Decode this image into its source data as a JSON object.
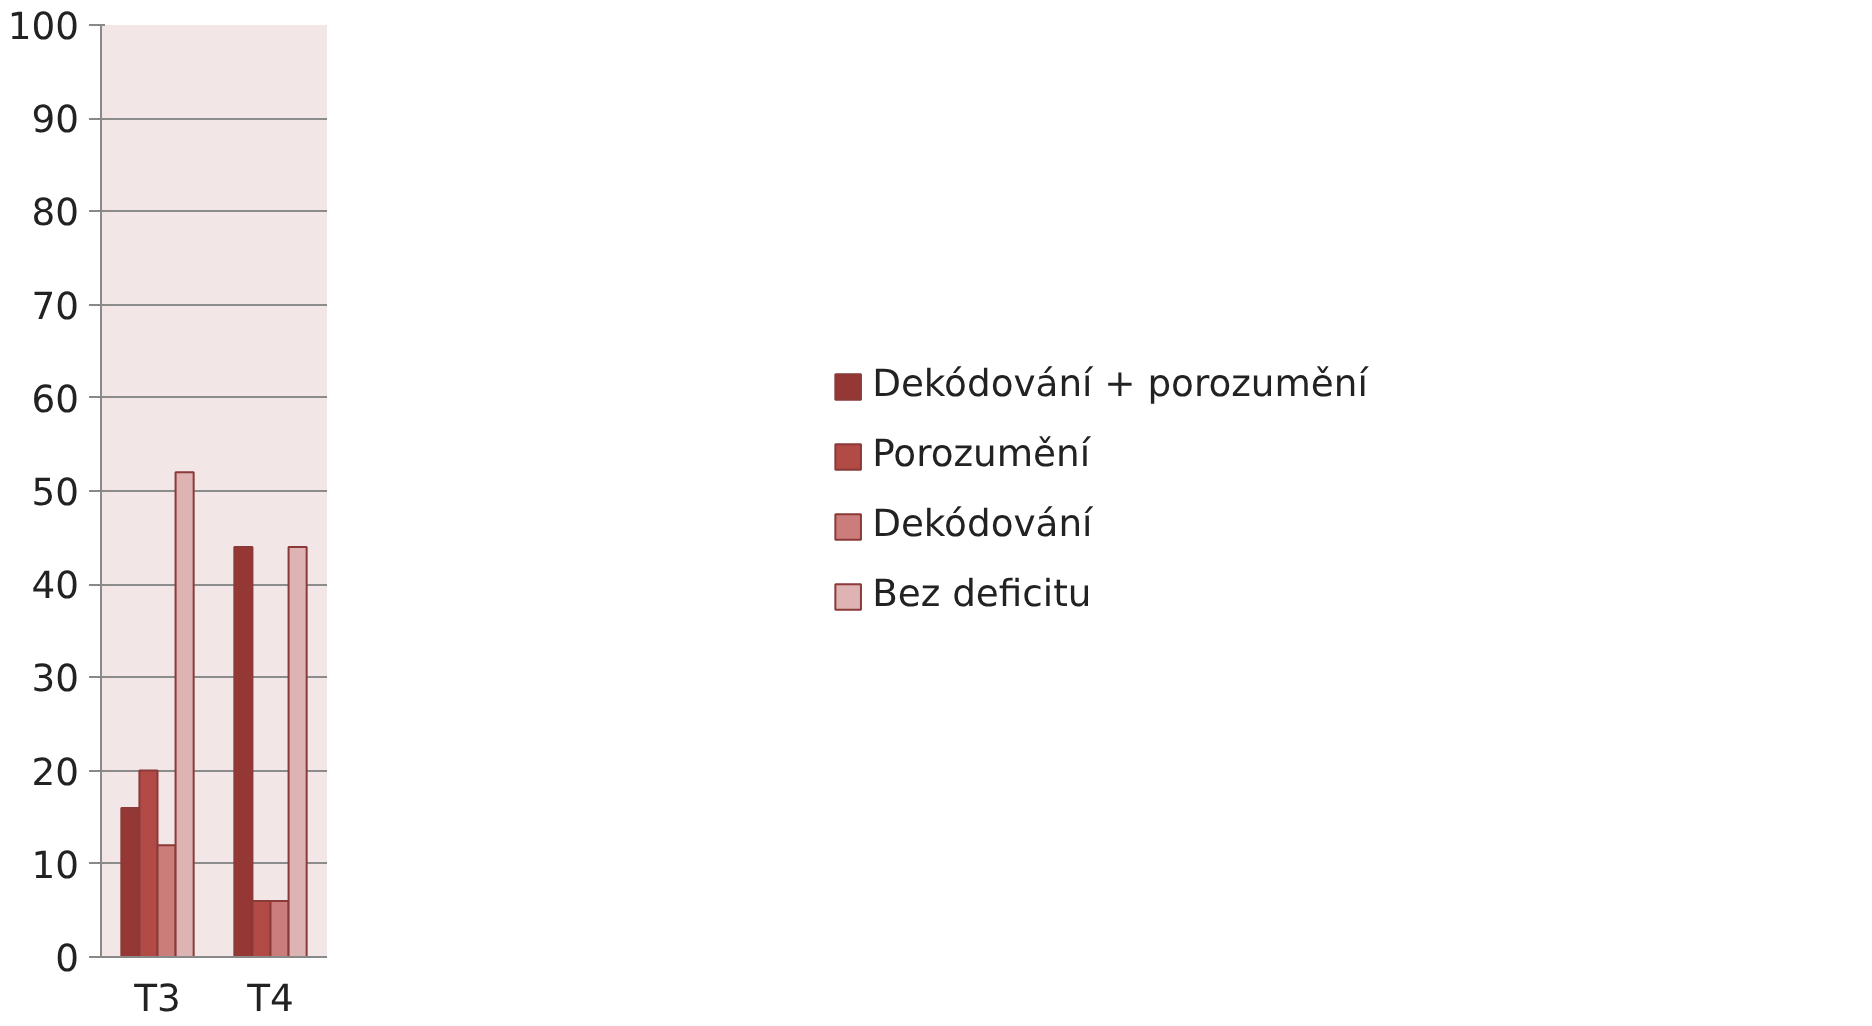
{
  "chart_data": {
    "type": "bar",
    "categories": [
      "T3",
      "T4"
    ],
    "series": [
      {
        "name": "Dekódování + porozumění",
        "color": "#953735",
        "values": [
          16,
          44
        ]
      },
      {
        "name": "Porozumění",
        "color": "#b24a46",
        "values": [
          20,
          6
        ]
      },
      {
        "name": "Dekódování",
        "color": "#cb7d7b",
        "values": [
          12,
          6
        ]
      },
      {
        "name": "Bez deficitu",
        "color": "#deb3b3",
        "values": [
          52,
          44
        ]
      }
    ],
    "ylim": [
      0,
      100
    ],
    "yticks": [
      0,
      10,
      20,
      30,
      40,
      50,
      60,
      70,
      80,
      90,
      100
    ],
    "grid": "y",
    "legend": "right"
  }
}
